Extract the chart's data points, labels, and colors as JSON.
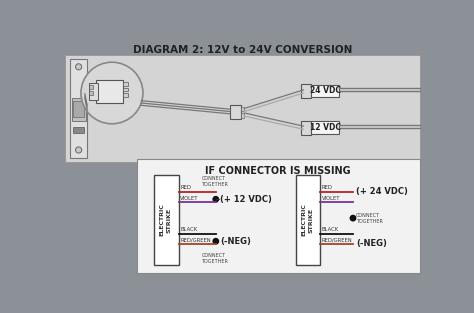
{
  "title": "DIAGRAM 2: 12V to 24V CONVERSION",
  "bg_color": "#8c9198",
  "top_panel_color": "#d4d4d4",
  "bot_panel_color": "#f2f2f2",
  "dark_text": "#222222",
  "connector_box_title": "IF CONNECTOR IS MISSING",
  "left_label_line1": "ELECTRIC",
  "left_label_line2": "STRIKE",
  "right_label_line1": "ELECTRIC",
  "right_label_line2": "STRIKE",
  "left_wires": [
    "RED",
    "VIOLET",
    "BLACK",
    "RED/GREEN"
  ],
  "right_wires": [
    "RED",
    "VIOLET",
    "BLACK",
    "RED/GREEN"
  ],
  "left_annotations": [
    "(+ 12 VDC)",
    "(-NEG)"
  ],
  "right_annotations": [
    "(+ 24 VDC)",
    "(-NEG)"
  ],
  "left_connect_top": "CONNECT\nTOGETHER",
  "left_connect_bot": "CONNECT\nTOGETHER",
  "right_connect_mid": "CONNECT\nTOGETHER",
  "wire_colors": {
    "RED": "#bb2222",
    "VIOLET": "#773399",
    "BLACK": "#111111",
    "RED/GREEN": "#aa4422"
  },
  "label_24vdc": "24 VDC",
  "label_12vdc": "12 VDC"
}
